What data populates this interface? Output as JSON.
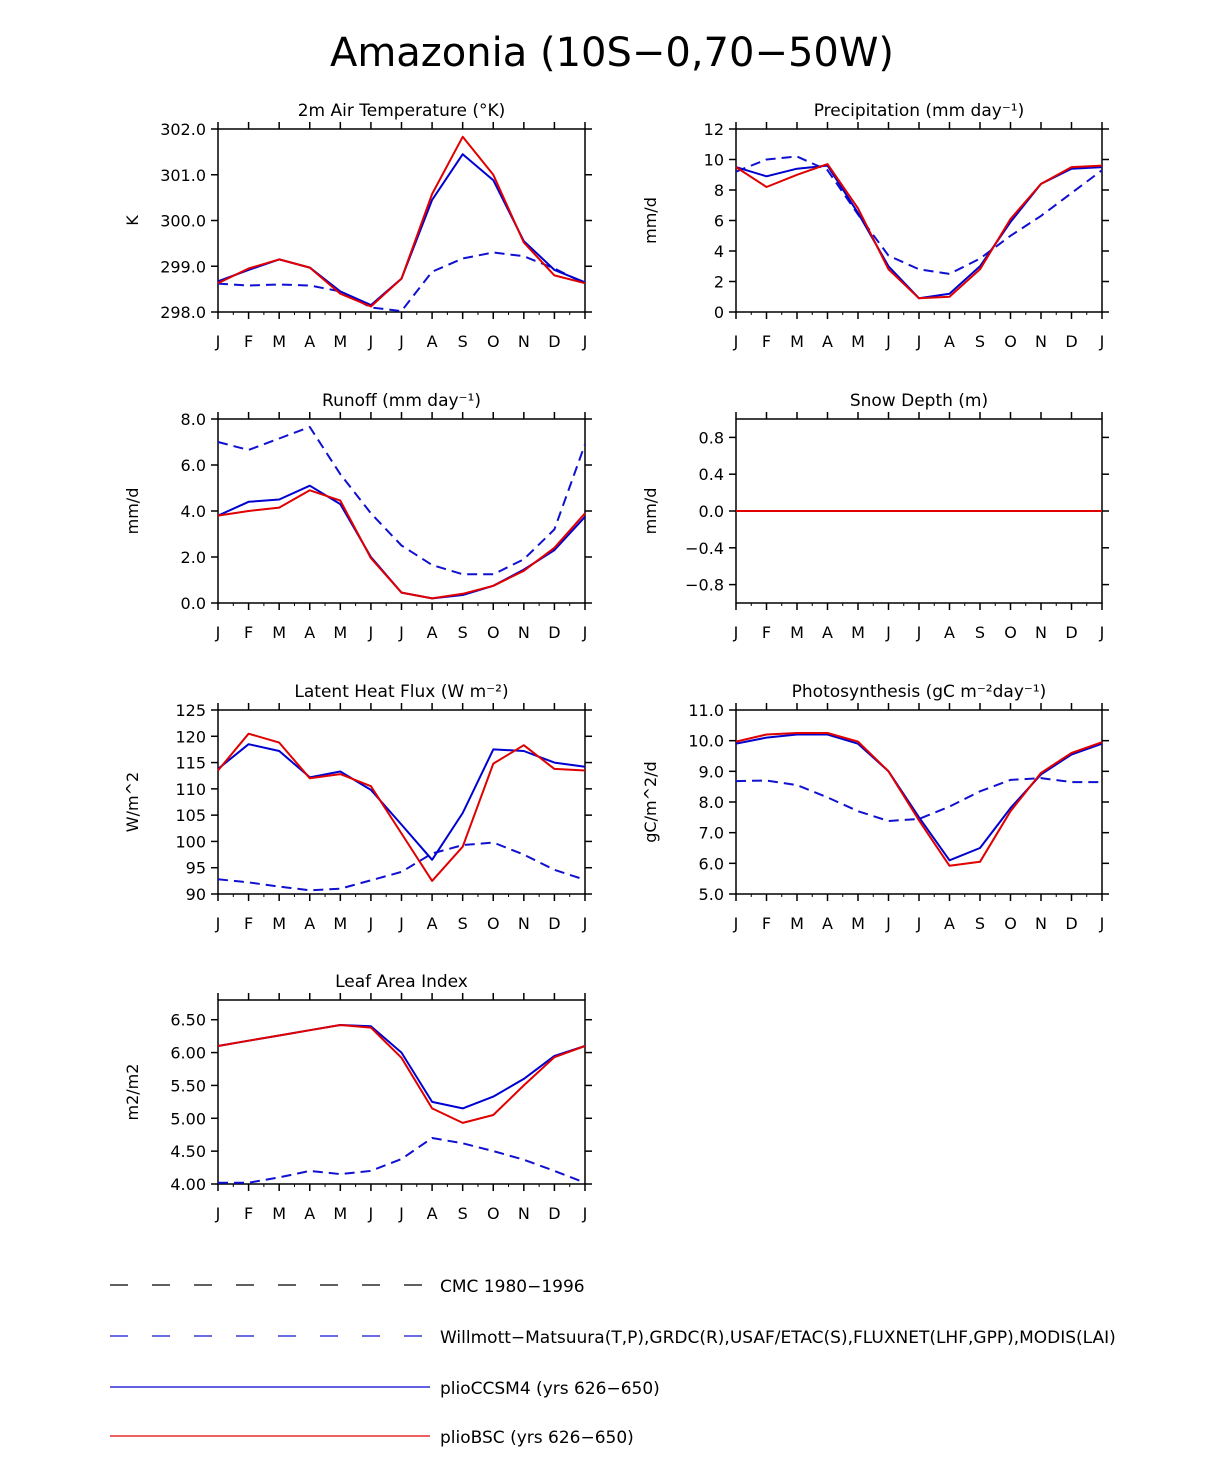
{
  "title": "Amazonia (10S−0,70−50W)",
  "months": [
    "J",
    "F",
    "M",
    "A",
    "M",
    "J",
    "J",
    "A",
    "S",
    "O",
    "N",
    "D",
    "J"
  ],
  "colors": {
    "obs": "#1010d0",
    "ccsm": "#0000d0",
    "bsc": "#e00000",
    "axis": "#000000",
    "cmc": "#000000"
  },
  "legend": [
    {
      "key": "cmc",
      "label": "CMC 1980−1996",
      "style": "dashed",
      "color": "#000000"
    },
    {
      "key": "obs",
      "label": "Willmott−Matsuura(T,P),GRDC(R),USAF/ETAC(S),FLUXNET(LHF,GPP),MODIS(LAI)",
      "style": "dashed",
      "color": "#1010d0"
    },
    {
      "key": "ccsm",
      "label": "plioCCSM4 (yrs 626−650)",
      "style": "solid",
      "color": "#0000d0"
    },
    {
      "key": "bsc",
      "label": "plioBSC (yrs 626−650)",
      "style": "solid",
      "color": "#e00000"
    }
  ],
  "chart_data": [
    {
      "type": "line",
      "title": "2m Air Temperature (°K)",
      "ylabel": "K",
      "ylim": [
        298.0,
        302.0
      ],
      "yticks": [
        "298.0",
        "299.0",
        "300.0",
        "301.0",
        "302.0"
      ],
      "x": [
        "J",
        "F",
        "M",
        "A",
        "M",
        "J",
        "J",
        "A",
        "S",
        "O",
        "N",
        "D",
        "J"
      ],
      "series": [
        {
          "name": "Observations",
          "style": "dashed",
          "values": [
            298.62,
            298.58,
            298.6,
            298.58,
            298.45,
            298.1,
            298.02,
            298.88,
            299.17,
            299.3,
            299.22,
            298.95,
            298.62
          ]
        },
        {
          "name": "plioCCSM4",
          "style": "solid",
          "values": [
            298.67,
            298.92,
            299.15,
            298.97,
            298.45,
            298.15,
            298.73,
            300.45,
            301.45,
            300.88,
            299.55,
            298.92,
            298.65
          ]
        },
        {
          "name": "plioBSC",
          "style": "solid",
          "values": [
            298.63,
            298.95,
            299.15,
            298.97,
            298.4,
            298.12,
            298.73,
            300.58,
            301.83,
            301.0,
            299.52,
            298.8,
            298.63
          ]
        }
      ]
    },
    {
      "type": "line",
      "title": "Precipitation (mm day⁻¹)",
      "ylabel": "mm/d",
      "ylim": [
        0,
        12
      ],
      "yticks": [
        "0",
        "2",
        "4",
        "6",
        "8",
        "10",
        "12"
      ],
      "x": [
        "J",
        "F",
        "M",
        "A",
        "M",
        "J",
        "J",
        "A",
        "S",
        "O",
        "N",
        "D",
        "J"
      ],
      "series": [
        {
          "name": "Observations",
          "style": "dashed",
          "values": [
            9.2,
            10.0,
            10.2,
            9.3,
            6.4,
            3.7,
            2.8,
            2.5,
            3.5,
            5.0,
            6.3,
            7.8,
            9.3
          ]
        },
        {
          "name": "plioCCSM4",
          "style": "solid",
          "values": [
            9.5,
            8.9,
            9.4,
            9.6,
            6.5,
            3.0,
            0.9,
            1.2,
            3.0,
            5.9,
            8.4,
            9.4,
            9.5
          ]
        },
        {
          "name": "plioBSC",
          "style": "solid",
          "values": [
            9.5,
            8.2,
            9.0,
            9.7,
            6.8,
            2.8,
            0.9,
            1.0,
            2.8,
            6.1,
            8.4,
            9.5,
            9.6
          ]
        }
      ]
    },
    {
      "type": "line",
      "title": "Runoff (mm day⁻¹)",
      "ylabel": "mm/d",
      "ylim": [
        0,
        8
      ],
      "yticks": [
        "0.0",
        "2.0",
        "4.0",
        "6.0",
        "8.0"
      ],
      "x": [
        "J",
        "F",
        "M",
        "A",
        "M",
        "J",
        "J",
        "A",
        "S",
        "O",
        "N",
        "D",
        "J"
      ],
      "series": [
        {
          "name": "Observations",
          "style": "dashed",
          "values": [
            7.0,
            6.65,
            7.15,
            7.65,
            5.6,
            3.9,
            2.5,
            1.65,
            1.25,
            1.25,
            1.9,
            3.2,
            6.9
          ]
        },
        {
          "name": "plioCCSM4",
          "style": "solid",
          "values": [
            3.8,
            4.4,
            4.5,
            5.1,
            4.3,
            2.0,
            0.45,
            0.2,
            0.35,
            0.75,
            1.45,
            2.3,
            3.75
          ]
        },
        {
          "name": "plioBSC",
          "style": "solid",
          "values": [
            3.8,
            4.0,
            4.15,
            4.9,
            4.45,
            1.95,
            0.45,
            0.2,
            0.4,
            0.75,
            1.4,
            2.4,
            3.9
          ]
        }
      ]
    },
    {
      "type": "line",
      "title": "Snow Depth (m)",
      "ylabel": "mm/d",
      "ylim": [
        -1.0,
        1.0
      ],
      "yticks": [
        "−0.8",
        "−0.4",
        "0.0",
        "0.4",
        "0.8"
      ],
      "x": [
        "J",
        "F",
        "M",
        "A",
        "M",
        "J",
        "J",
        "A",
        "S",
        "O",
        "N",
        "D",
        "J"
      ],
      "series": [
        {
          "name": "Observations",
          "style": "dashed",
          "values": [
            0,
            0,
            0,
            0,
            0,
            0,
            0,
            0,
            0,
            0,
            0,
            0,
            0
          ]
        },
        {
          "name": "plioCCSM4",
          "style": "solid",
          "values": [
            0,
            0,
            0,
            0,
            0,
            0,
            0,
            0,
            0,
            0,
            0,
            0,
            0
          ]
        },
        {
          "name": "plioBSC",
          "style": "solid",
          "values": [
            0,
            0,
            0,
            0,
            0,
            0,
            0,
            0,
            0,
            0,
            0,
            0,
            0
          ]
        }
      ]
    },
    {
      "type": "line",
      "title": "Latent Heat Flux (W m⁻²)",
      "ylabel": "W/m^2",
      "ylim": [
        90,
        125
      ],
      "yticks": [
        "90",
        "95",
        "100",
        "105",
        "110",
        "115",
        "120",
        "125"
      ],
      "x": [
        "J",
        "F",
        "M",
        "A",
        "M",
        "J",
        "J",
        "A",
        "S",
        "O",
        "N",
        "D",
        "J"
      ],
      "series": [
        {
          "name": "Observations",
          "style": "dashed",
          "values": [
            92.8,
            92.2,
            91.4,
            90.7,
            91.0,
            92.6,
            94.2,
            97.7,
            99.3,
            99.8,
            97.5,
            94.6,
            92.7
          ]
        },
        {
          "name": "plioCCSM4",
          "style": "solid",
          "values": [
            113.8,
            118.5,
            117.2,
            112.2,
            113.3,
            109.8,
            103.2,
            96.5,
            105.4,
            117.5,
            117.2,
            115.0,
            114.2
          ]
        },
        {
          "name": "plioBSC",
          "style": "solid",
          "values": [
            113.5,
            120.5,
            118.8,
            112.0,
            112.8,
            110.5,
            101.5,
            92.5,
            99.0,
            114.8,
            118.3,
            113.8,
            113.5
          ]
        }
      ]
    },
    {
      "type": "line",
      "title": "Photosynthesis (gC m⁻²day⁻¹)",
      "ylabel": "gC/m^2/d",
      "ylim": [
        5.0,
        11.0
      ],
      "yticks": [
        "5.0",
        "6.0",
        "7.0",
        "8.0",
        "9.0",
        "10.0",
        "11.0"
      ],
      "x": [
        "J",
        "F",
        "M",
        "A",
        "M",
        "J",
        "J",
        "A",
        "S",
        "O",
        "N",
        "D",
        "J"
      ],
      "series": [
        {
          "name": "Observations",
          "style": "dashed",
          "values": [
            8.68,
            8.7,
            8.55,
            8.15,
            7.7,
            7.38,
            7.45,
            7.85,
            8.35,
            8.72,
            8.78,
            8.65,
            8.65
          ]
        },
        {
          "name": "plioCCSM4",
          "style": "solid",
          "values": [
            9.9,
            10.1,
            10.2,
            10.2,
            9.9,
            9.0,
            7.5,
            6.1,
            6.5,
            7.8,
            8.9,
            9.55,
            9.9
          ]
        },
        {
          "name": "plioBSC",
          "style": "solid",
          "values": [
            9.97,
            10.2,
            10.25,
            10.25,
            9.97,
            9.0,
            7.4,
            5.92,
            6.05,
            7.7,
            8.95,
            9.6,
            9.95
          ]
        }
      ]
    },
    {
      "type": "line",
      "title": "Leaf Area Index",
      "ylabel": "m2/m2",
      "ylim": [
        4.0,
        6.8
      ],
      "yticks": [
        "4.00",
        "4.50",
        "5.00",
        "5.50",
        "6.00",
        "6.50"
      ],
      "x": [
        "J",
        "F",
        "M",
        "A",
        "M",
        "J",
        "J",
        "A",
        "S",
        "O",
        "N",
        "D",
        "J"
      ],
      "series": [
        {
          "name": "Observations",
          "style": "dashed",
          "values": [
            4.02,
            4.02,
            4.1,
            4.2,
            4.15,
            4.2,
            4.38,
            4.7,
            4.62,
            4.5,
            4.37,
            4.2,
            4.02
          ]
        },
        {
          "name": "plioCCSM4",
          "style": "solid",
          "values": [
            6.1,
            6.18,
            6.26,
            6.34,
            6.42,
            6.4,
            6.0,
            5.25,
            5.15,
            5.33,
            5.6,
            5.95,
            6.1
          ]
        },
        {
          "name": "plioBSC",
          "style": "solid",
          "values": [
            6.1,
            6.18,
            6.26,
            6.34,
            6.42,
            6.38,
            5.92,
            5.15,
            4.93,
            5.05,
            5.5,
            5.93,
            6.1
          ]
        }
      ]
    }
  ]
}
